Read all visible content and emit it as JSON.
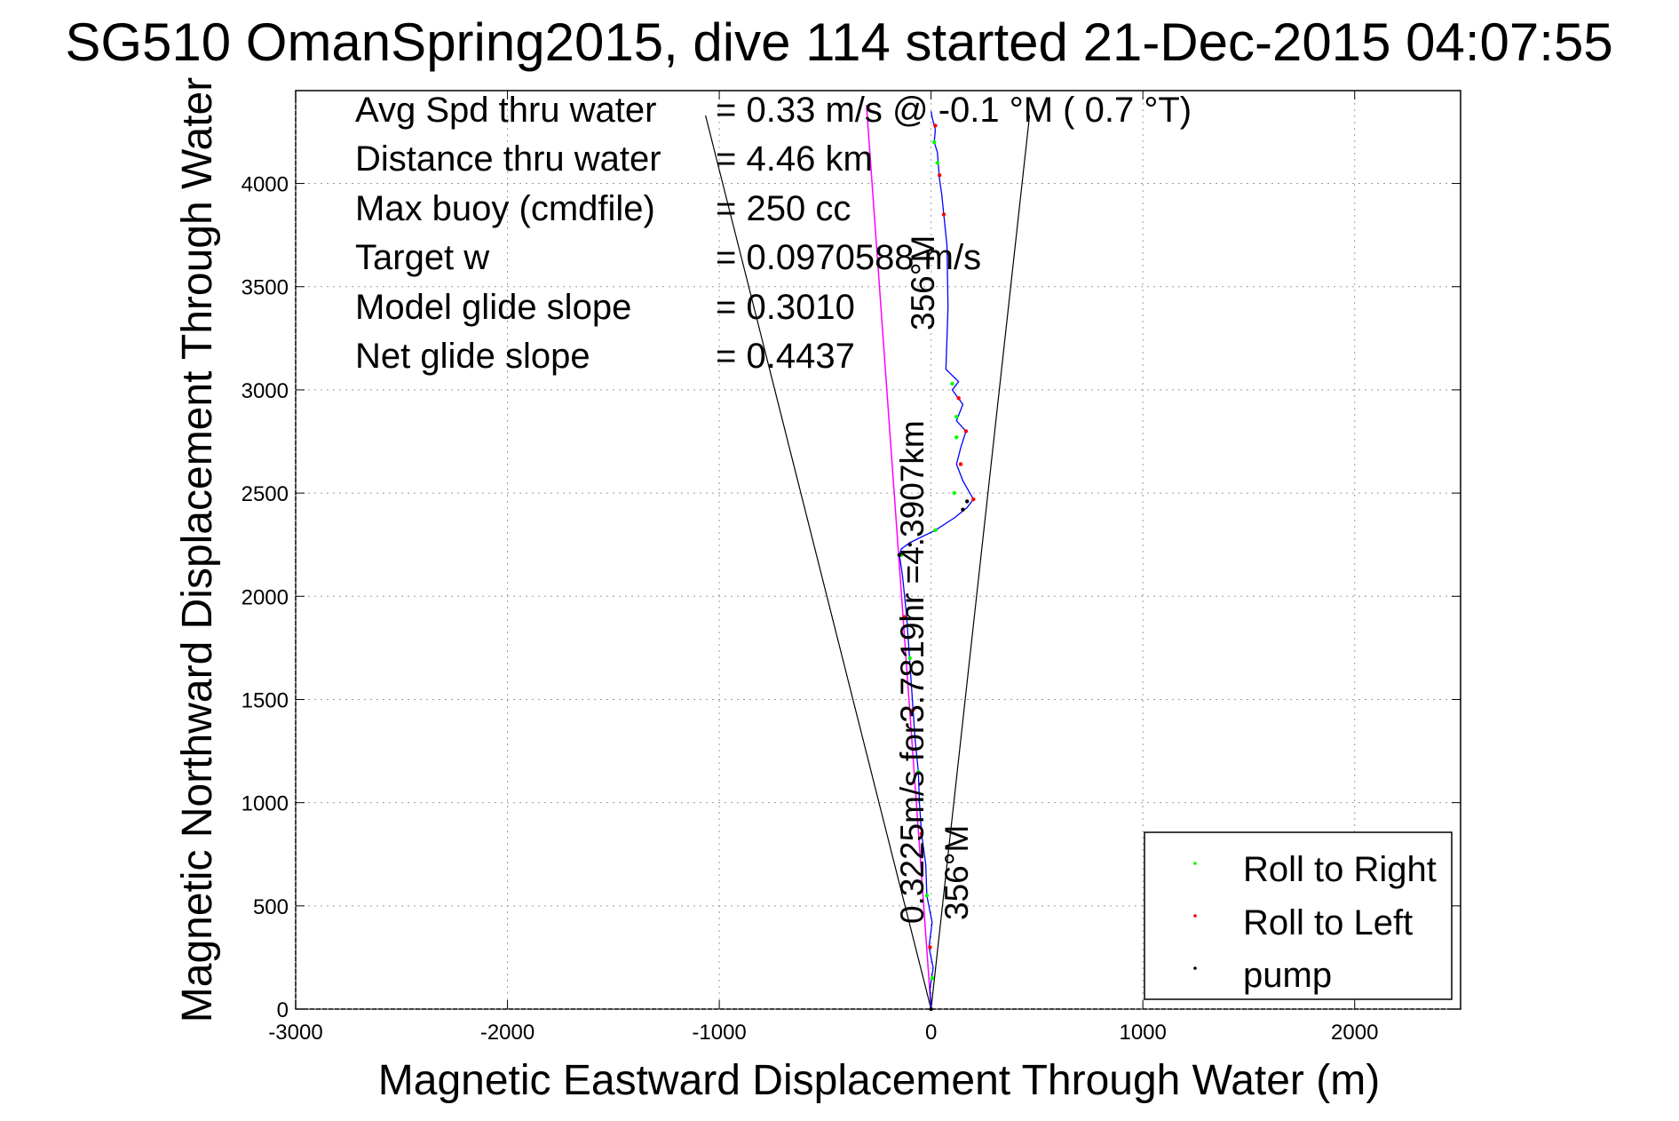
{
  "chart_data": {
    "type": "line",
    "title": "SG510 OmanSpring2015, dive 114 started 21-Dec-2015 04:07:55",
    "xlabel": "Magnetic Eastward Displacement Through Water (m)",
    "ylabel": "Magnetic Northward Displacement Through Water",
    "xlim": [
      -3000,
      2500
    ],
    "ylim": [
      0,
      4450
    ],
    "xticks": [
      -3000,
      -2000,
      -1000,
      0,
      1000,
      2000
    ],
    "yticks": [
      0,
      500,
      1000,
      1500,
      2000,
      2500,
      3000,
      3500,
      4000
    ],
    "grid": true,
    "legend_position": "bottom-right",
    "info_lines": [
      {
        "label": "Avg Spd thru water",
        "value": "=  0.33 m/s @   -0.1 °M (  0.7 °T)"
      },
      {
        "label": "Distance thru water",
        "value": "=  4.46 km"
      },
      {
        "label": "Max buoy (cmdfile)",
        "value": "= 250 cc"
      },
      {
        "label": "Target w",
        "value": "= 0.0970588 m/s"
      },
      {
        "label": "Model glide slope",
        "value": "= 0.3010"
      },
      {
        "label": "Net glide slope",
        "value": "= 0.4437"
      }
    ],
    "annotations": {
      "heading_top": "356°M",
      "speed_text": "0.3225m/s for3.7819hr =4.3907km",
      "heading_bottom": "356°M"
    },
    "envelope_lines": [
      {
        "x": [
          0,
          -1065
        ],
        "y": [
          0,
          4330
        ]
      },
      {
        "x": [
          0,
          465
        ],
        "y": [
          0,
          4330
        ]
      }
    ],
    "target_line": {
      "x": [
        0,
        -305
      ],
      "y": [
        0,
        4380
      ],
      "color": "#ff00ff"
    },
    "track": {
      "color": "#0000ff",
      "x": [
        0,
        -5,
        10,
        -10,
        5,
        -20,
        -25,
        -45,
        -55,
        -60,
        -75,
        -85,
        -95,
        -105,
        -115,
        -125,
        -135,
        -145,
        -150,
        -140,
        -100,
        20,
        110,
        170,
        200,
        150,
        120,
        140,
        165,
        120,
        150,
        100,
        130,
        70,
        80,
        75,
        60,
        50,
        40,
        35,
        30,
        15,
        20,
        5,
        0
      ],
      "y": [
        0,
        100,
        200,
        300,
        420,
        550,
        700,
        850,
        1000,
        1150,
        1300,
        1450,
        1600,
        1750,
        1900,
        2000,
        2100,
        2170,
        2200,
        2230,
        2260,
        2320,
        2380,
        2430,
        2470,
        2560,
        2640,
        2720,
        2800,
        2850,
        2930,
        3000,
        3040,
        3100,
        3400,
        3700,
        3850,
        3950,
        4020,
        4080,
        4150,
        4200,
        4260,
        4320,
        4350
      ]
    },
    "series": [
      {
        "name": "Roll to Right",
        "color": "#00ff00",
        "x": [
          5,
          -20,
          -60,
          -100,
          -140,
          20,
          110,
          120,
          120,
          100,
          15,
          30
        ],
        "y": [
          150,
          550,
          1150,
          1700,
          2200,
          2320,
          2500,
          2770,
          2870,
          3030,
          4200,
          4100
        ]
      },
      {
        "name": "Roll to Left",
        "color": "#ff0000",
        "x": [
          -5,
          -45,
          -85,
          -125,
          200,
          140,
          165,
          130,
          60,
          40,
          20
        ],
        "y": [
          300,
          850,
          1450,
          1900,
          2470,
          2640,
          2800,
          2960,
          3850,
          4040,
          4280
        ]
      },
      {
        "name": "pump",
        "color": "#000000",
        "x": [
          0,
          -150,
          -100,
          150,
          170
        ],
        "y": [
          0,
          2200,
          2250,
          2420,
          2460
        ]
      }
    ]
  }
}
